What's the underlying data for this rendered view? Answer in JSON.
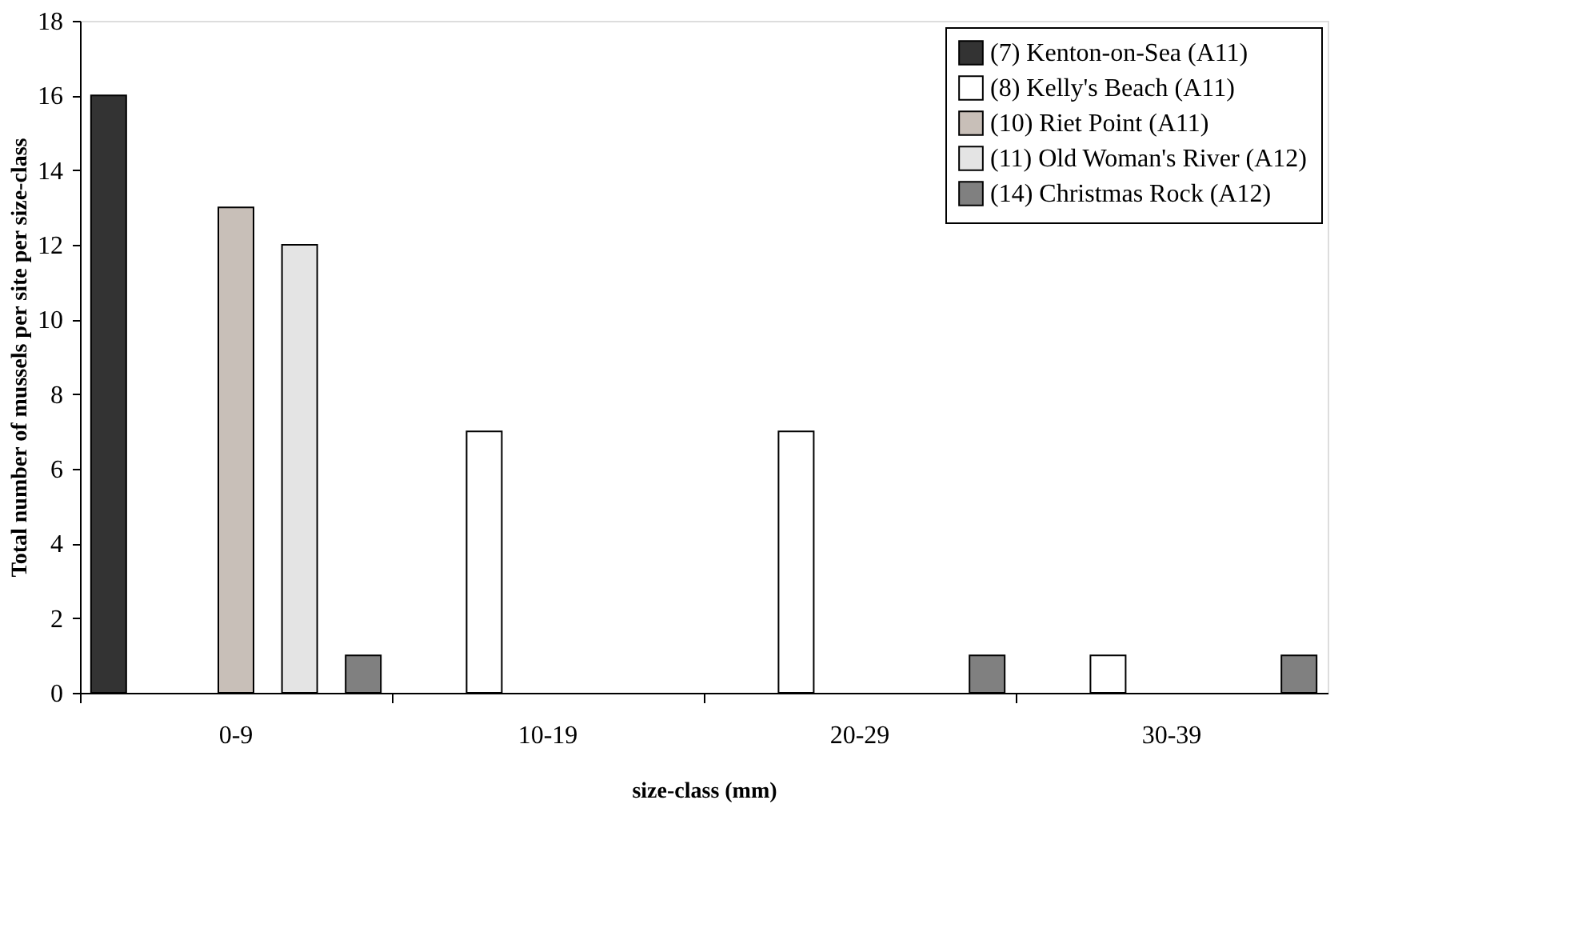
{
  "chart_data": {
    "type": "bar",
    "xlabel": "size-class (mm)",
    "ylabel": "Total number of mussels per site per size-class",
    "categories": [
      "0-9",
      "10-19",
      "20-29",
      "30-39"
    ],
    "series": [
      {
        "name": "(7) Kenton-on-Sea (A11)",
        "color": "#333333",
        "values": [
          16,
          null,
          null,
          null
        ]
      },
      {
        "name": "(8) Kelly's Beach (A11)",
        "color": "#ffffff",
        "values": [
          null,
          7,
          7,
          1
        ]
      },
      {
        "name": "(10) Riet Point (A11)",
        "color": "#c8bfb8",
        "values": [
          13,
          null,
          null,
          null
        ]
      },
      {
        "name": "(11) Old Woman's River (A12)",
        "color": "#e4e4e4",
        "values": [
          12,
          null,
          null,
          null
        ]
      },
      {
        "name": "(14) Christmas Rock (A12)",
        "color": "#808080",
        "values": [
          1,
          null,
          1,
          1
        ]
      }
    ],
    "ylim": [
      0,
      18
    ],
    "yticks": [
      0,
      2,
      4,
      6,
      8,
      10,
      12,
      14,
      16,
      18
    ],
    "grid": false,
    "legend": "top right"
  }
}
